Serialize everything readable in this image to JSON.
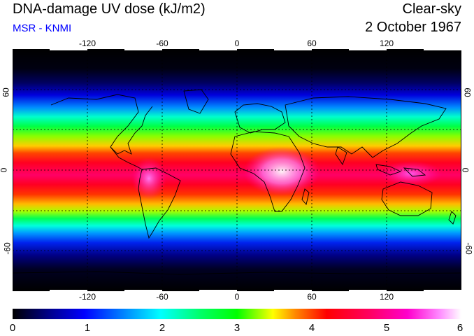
{
  "header": {
    "title": "DNA-damage UV dose (kJ/m2)",
    "source": "MSR - KNMI",
    "sky_condition": "Clear-sky",
    "date": "2 October 1967"
  },
  "colors": {
    "source_text": "#0000ff",
    "background": "#ffffff",
    "grid": "#000000"
  },
  "map": {
    "projection": "equirectangular",
    "lon_range": [
      -180,
      180
    ],
    "lat_range": [
      -90,
      90
    ],
    "lon_ticks": [
      "-120",
      "-60",
      "0",
      "60",
      "120"
    ],
    "lat_ticks": [
      "60",
      "0",
      "-60"
    ],
    "gridlines": "dotted",
    "field_description_values": {
      "equatorial_max_kJm2": 5.5,
      "africa_peak_kJm2": 6,
      "lat_30_kJm2": 3,
      "lat_60_kJm2": 1,
      "poles_kJm2": 0
    }
  },
  "colorbar": {
    "min": 0,
    "max": 6,
    "tick_labels": [
      "0",
      "1",
      "2",
      "3",
      "4",
      "5",
      "6"
    ],
    "stops": [
      "#000000",
      "#000088",
      "#0000ff",
      "#0088ff",
      "#00ffff",
      "#00ff88",
      "#00ff00",
      "#aaff00",
      "#ffff00",
      "#ff8800",
      "#ff0000",
      "#ff0066",
      "#ff00aa",
      "#ff66ff",
      "#ffffff"
    ]
  }
}
